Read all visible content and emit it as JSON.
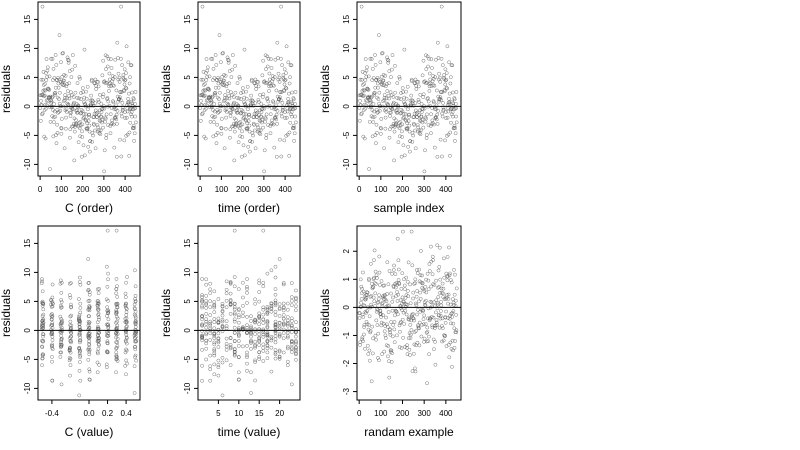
{
  "chart_data": [
    {
      "type": "scatter",
      "xlabel": "C (order)",
      "ylabel": "residuals",
      "xlim": [
        -10,
        470
      ],
      "ylim": [
        -12,
        18
      ],
      "xticks": [
        0,
        100,
        200,
        300,
        400
      ],
      "yticks": [
        -10,
        -5,
        0,
        5,
        10,
        15
      ],
      "hline": 0,
      "grid": false,
      "points": {
        "n": 450,
        "x_range": [
          1,
          450
        ],
        "y_range": [
          -11.5,
          17.3
        ],
        "pattern": "index-order scatter around zero"
      }
    },
    {
      "type": "scatter",
      "xlabel": "time (order)",
      "ylabel": "residuals",
      "xlim": [
        -10,
        470
      ],
      "ylim": [
        -12,
        18
      ],
      "xticks": [
        0,
        100,
        200,
        300,
        400
      ],
      "yticks": [
        -10,
        -5,
        0,
        5,
        10,
        15
      ],
      "hline": 0,
      "grid": false,
      "points": {
        "n": 450,
        "x_range": [
          1,
          450
        ],
        "y_range": [
          -11.5,
          17.3
        ],
        "pattern": "index-order scatter around zero"
      }
    },
    {
      "type": "scatter",
      "xlabel": "sample index",
      "ylabel": "residuals",
      "xlim": [
        -10,
        470
      ],
      "ylim": [
        -12,
        18
      ],
      "xticks": [
        0,
        100,
        200,
        300,
        400
      ],
      "yticks": [
        -10,
        -5,
        0,
        5,
        10,
        15
      ],
      "hline": 0,
      "grid": false,
      "points": {
        "n": 450,
        "x_range": [
          1,
          450
        ],
        "y_range": [
          -11.5,
          17.3
        ],
        "pattern": "index-order scatter around zero"
      }
    },
    {
      "type": "scatter",
      "xlabel": "C (value)",
      "ylabel": "residuals",
      "xlim": [
        -0.55,
        0.55
      ],
      "ylim": [
        -12,
        18
      ],
      "xticks": [
        -0.4,
        0.0,
        0.2,
        0.4
      ],
      "xticklabels": [
        "-0.4",
        "0.0",
        "0.2",
        "0.4"
      ],
      "yticks": [
        -10,
        -5,
        0,
        5,
        10,
        15
      ],
      "hline": 0,
      "grid": false,
      "points": {
        "n": 450,
        "x_levels": [
          -0.5,
          -0.4,
          -0.3,
          -0.2,
          -0.1,
          0.0,
          0.1,
          0.2,
          0.3,
          0.4,
          0.5
        ],
        "y_range": [
          -11.5,
          17.3
        ],
        "pattern": "vertical strips at discrete C values"
      }
    },
    {
      "type": "scatter",
      "xlabel": "time (value)",
      "ylabel": "residuals",
      "xlim": [
        0,
        25
      ],
      "ylim": [
        -12,
        18
      ],
      "xticks": [
        5,
        10,
        15,
        20
      ],
      "yticks": [
        -10,
        -5,
        0,
        5,
        10,
        15
      ],
      "hline": 0,
      "grid": false,
      "points": {
        "n": 450,
        "x_range": [
          1,
          24
        ],
        "y_range": [
          -11.5,
          17.3
        ],
        "pattern": "scatter over time values"
      }
    },
    {
      "type": "scatter",
      "xlabel": "randam example",
      "ylabel": "residuals",
      "xlim": [
        -10,
        470
      ],
      "ylim": [
        -3.3,
        2.9
      ],
      "xticks": [
        0,
        100,
        200,
        300,
        400
      ],
      "yticks": [
        -3,
        -2,
        -1,
        0,
        1,
        2
      ],
      "hline": 0,
      "grid": false,
      "points": {
        "n": 450,
        "x_range": [
          1,
          450
        ],
        "y_range": [
          -3.2,
          2.7
        ],
        "pattern": "random normal scatter"
      }
    }
  ],
  "style": {
    "point_color": "#555555",
    "axis_color": "#000000",
    "hline_color": "#000000",
    "background": "#ffffff"
  }
}
